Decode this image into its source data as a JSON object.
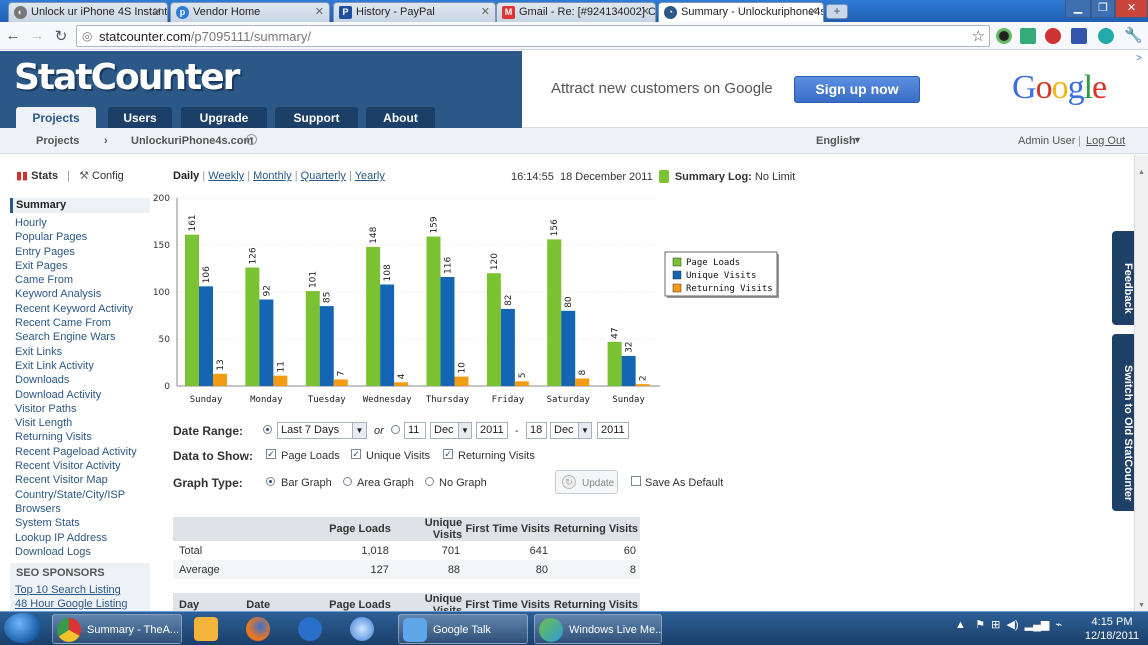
{
  "browser": {
    "tabs": [
      {
        "label": "Unlock ur iPhone 4S Instant",
        "icon": "globe-icon"
      },
      {
        "label": "Vendor Home",
        "icon": "p-logo-icon"
      },
      {
        "label": "History - PayPal",
        "icon": "paypal-icon"
      },
      {
        "label": "Gmail - Re: [#924134002] Co",
        "icon": "gmail-icon"
      },
      {
        "label": "Summary - Unlockuriphone4s",
        "icon": "statcounter-icon"
      }
    ],
    "url_host": "statcounter.com",
    "url_path": "/p7095111/summary/"
  },
  "site": {
    "logo": "StatCounter",
    "nav": [
      "Projects",
      "Users",
      "Upgrade",
      "Support",
      "About"
    ],
    "ad_text": "Attract new customers on Google",
    "ad_button": "Sign up now",
    "ad_brand": "Google",
    "ad_marker": ">",
    "breadcrumb_root": "Projects",
    "breadcrumb_sep": "›",
    "breadcrumb_project": "UnlockuriPhone4s.com",
    "language": "English",
    "user": "Admin User",
    "logout": "Log Out"
  },
  "sidebar": {
    "stats_label": "Stats",
    "config_label": "Config",
    "items": [
      "Summary",
      "Hourly",
      "Popular Pages",
      "Entry Pages",
      "Exit Pages",
      "Came From",
      "Keyword Analysis",
      "Recent Keyword Activity",
      "Recent Came From",
      "Search Engine Wars",
      "Exit Links",
      "Exit Link Activity",
      "Downloads",
      "Download Activity",
      "Visitor Paths",
      "Visit Length",
      "Returning Visits",
      "Recent Pageload Activity",
      "Recent Visitor Activity",
      "Recent Visitor Map",
      "Country/State/City/ISP",
      "Browsers",
      "System Stats",
      "Lookup IP Address",
      "Download Logs"
    ],
    "seo_title": "SEO SPONSORS",
    "seo_links": [
      "Top 10 Search Listing",
      "48 Hour Google Listing"
    ]
  },
  "periods": [
    "Daily",
    "Weekly",
    "Monthly",
    "Quarterly",
    "Yearly"
  ],
  "clock": {
    "time": "16:14:55",
    "date": "18 December 2011",
    "log_label": "Summary Log:",
    "log_value": "No Limit"
  },
  "chart_data": {
    "type": "bar",
    "categories": [
      "Sunday",
      "Monday",
      "Tuesday",
      "Wednesday",
      "Thursday",
      "Friday",
      "Saturday",
      "Sunday"
    ],
    "series": [
      {
        "name": "Page Loads",
        "color": "#7ac231",
        "values": [
          161,
          126,
          101,
          148,
          159,
          120,
          156,
          47
        ]
      },
      {
        "name": "Unique Visits",
        "color": "#1565b5",
        "values": [
          106,
          92,
          85,
          108,
          116,
          82,
          80,
          32
        ]
      },
      {
        "name": "Returning Visits",
        "color": "#f39c12",
        "values": [
          13,
          11,
          7,
          4,
          10,
          5,
          8,
          2
        ]
      }
    ],
    "ylim": [
      0,
      200
    ],
    "yticks": [
      0,
      50,
      100,
      150,
      200
    ],
    "legend": "right"
  },
  "form": {
    "date_range_label": "Date Range:",
    "range_value": "Last 7 Days",
    "or": "or",
    "from_day": "11",
    "from_month": "Dec",
    "from_year": "2011",
    "dash": "-",
    "to_day": "18",
    "to_month": "Dec",
    "to_year": "2011",
    "data_label": "Data to Show:",
    "opt_page_loads": "Page Loads",
    "opt_unique": "Unique Visits",
    "opt_returning": "Returning Visits",
    "graph_label": "Graph Type:",
    "opt_bar": "Bar Graph",
    "opt_area": "Area Graph",
    "opt_none": "No Graph",
    "update": "Update",
    "save_default": "Save As Default"
  },
  "summary_table": {
    "headers": [
      "",
      "Page Loads",
      "Unique Visits",
      "First Time Visits",
      "Returning Visits"
    ],
    "rows": [
      [
        "Total",
        "1,018",
        "701",
        "641",
        "60"
      ],
      [
        "Average",
        "127",
        "88",
        "80",
        "8"
      ]
    ]
  },
  "detail_table": {
    "headers": [
      "Day",
      "Date",
      "Page Loads",
      "Unique Visits",
      "First Time Visits",
      "Returning Visits"
    ]
  },
  "right_tabs": {
    "feedback": "Feedback",
    "switch": "Switch to Old StatCounter"
  },
  "taskbar": {
    "items": [
      {
        "label": "Summary - TheA...",
        "icon": "chrome-icon"
      },
      {
        "label": "",
        "icon": "outlook-icon"
      },
      {
        "label": "",
        "icon": "firefox-icon"
      },
      {
        "label": "",
        "icon": "m-app-icon"
      },
      {
        "label": "",
        "icon": "safari-icon"
      },
      {
        "label": "Google Talk",
        "icon": "gtalk-icon"
      },
      {
        "label": "Windows Live Me...",
        "icon": "messenger-icon"
      }
    ],
    "time": "4:15 PM",
    "date": "12/18/2011"
  }
}
